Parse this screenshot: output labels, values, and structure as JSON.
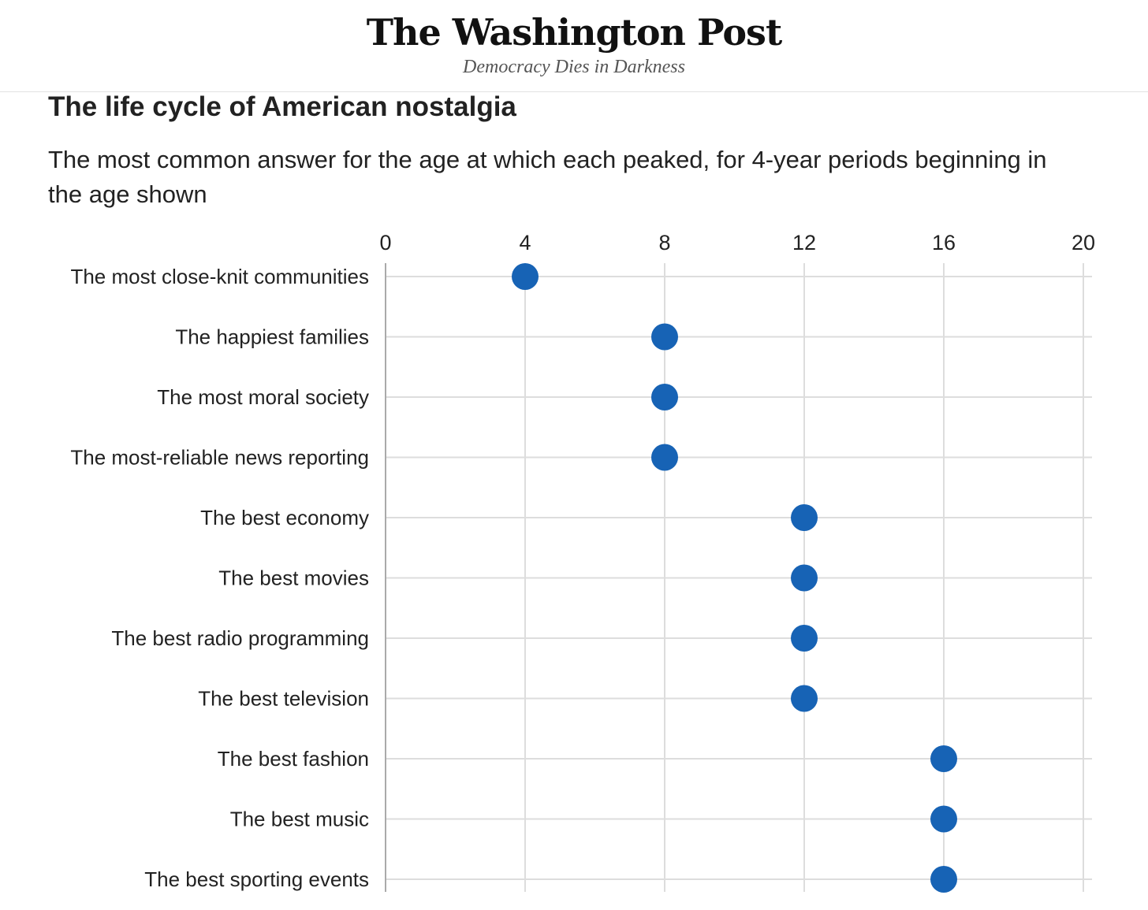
{
  "masthead": {
    "name": "The Washington Post",
    "tagline": "Democracy Dies in Darkness"
  },
  "colors": {
    "dot": "#1763b5",
    "grid": "#dddddd",
    "axis": "#aaaaaa",
    "text": "#222222"
  },
  "chart_data": {
    "type": "scatter",
    "title": "The life cycle of American nostalgia",
    "subtitle": "The most common answer for the age at which each peaked, for 4-year periods beginning in the age shown",
    "xlabel": "",
    "ylabel": "",
    "xlim": [
      0,
      20
    ],
    "xticks": [
      0,
      4,
      8,
      12,
      16,
      20
    ],
    "x_axis_position": "top",
    "grid": true,
    "categories": [
      "The most close-knit communities",
      "The happiest families",
      "The most moral society",
      "The most-reliable news reporting",
      "The best economy",
      "The best movies",
      "The best radio programming",
      "The best television",
      "The best fashion",
      "The best music",
      "The best sporting events"
    ],
    "values": [
      4,
      8,
      8,
      8,
      12,
      12,
      12,
      12,
      16,
      16,
      16
    ]
  }
}
